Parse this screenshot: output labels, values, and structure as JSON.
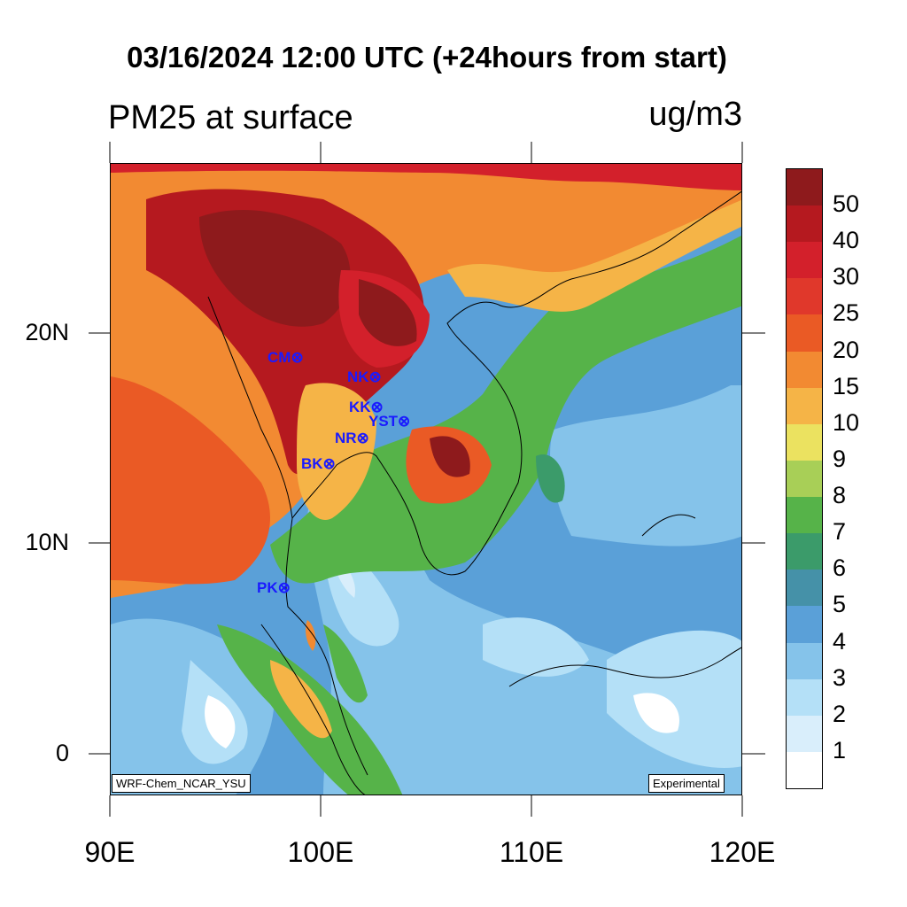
{
  "title": "03/16/2024 12:00 UTC (+24hours from start)",
  "subtitle_left": "PM25 at surface",
  "subtitle_right": "ug/m3",
  "lat_labels": [
    "20N",
    "10N",
    "0"
  ],
  "lon_labels": [
    "90E",
    "100E",
    "110E",
    "120E"
  ],
  "stations": [
    {
      "code": "CM",
      "label": "CM⊗"
    },
    {
      "code": "NK",
      "label": "NK⊗"
    },
    {
      "code": "KK",
      "label": "KK⊗"
    },
    {
      "code": "YST",
      "label": "YST⊗"
    },
    {
      "code": "NR",
      "label": "NR⊗"
    },
    {
      "code": "BK",
      "label": "BK⊗"
    },
    {
      "code": "PK",
      "label": "PK⊗"
    }
  ],
  "colorbar": {
    "labels": [
      "50",
      "40",
      "30",
      "25",
      "20",
      "15",
      "10",
      "9",
      "8",
      "7",
      "6",
      "5",
      "4",
      "3",
      "2",
      "1"
    ],
    "colors": [
      "#8e1a1c",
      "#b5191f",
      "#d3202b",
      "#e0382b",
      "#ea5a25",
      "#f28a32",
      "#f5b447",
      "#ebe260",
      "#a8cf57",
      "#56b349",
      "#3b9b6a",
      "#4591a8",
      "#5aa0d8",
      "#85c3ea",
      "#b4e0f7",
      "#d9eefb",
      "#ffffff"
    ]
  },
  "model_tag": "WRF-Chem_NCAR_YSU",
  "status_tag": "Experimental",
  "colors": {
    "station_text": "#1a1aff"
  }
}
